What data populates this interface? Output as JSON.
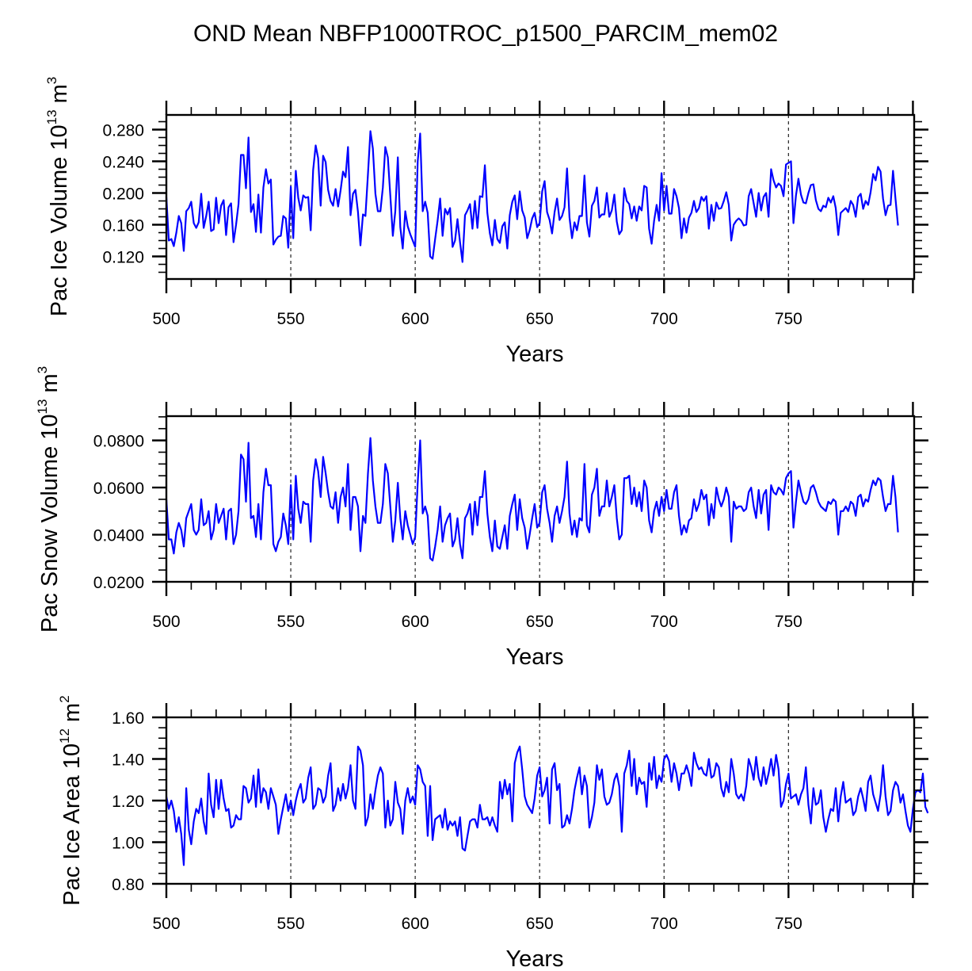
{
  "chart_data": [
    {
      "type": "line",
      "title": "OND Mean NBFP1000TROC_p1500_PARCIM_mem02",
      "xlabel": "Years",
      "ylabel": "Pac Ice Volume 10^13 m^3",
      "ylabel_parts": {
        "base": "Pac Ice Volume 10",
        "exp1": "13",
        "unit": " m",
        "exp2": "3"
      },
      "xlim": [
        500,
        800.5
      ],
      "ylim": [
        0.0915,
        0.2985
      ],
      "xticks": [
        "500",
        "550",
        "600",
        "650",
        "700",
        "750"
      ],
      "xtick_values": [
        500,
        550,
        600,
        650,
        700,
        750
      ],
      "yticks": [
        "0.120",
        "0.160",
        "0.200",
        "0.240",
        "0.280"
      ],
      "ytick_values": [
        0.12,
        0.16,
        0.2,
        0.24,
        0.28
      ],
      "vlines": [
        550,
        600,
        650,
        700,
        750
      ],
      "line_color": "#0000ff",
      "x_start": 500,
      "values": [
        0.195,
        0.14,
        0.142,
        0.133,
        0.15,
        0.171,
        0.162,
        0.127,
        0.177,
        0.181,
        0.189,
        0.162,
        0.156,
        0.163,
        0.199,
        0.156,
        0.171,
        0.189,
        0.152,
        0.154,
        0.194,
        0.162,
        0.184,
        0.191,
        0.147,
        0.182,
        0.187,
        0.138,
        0.16,
        0.186,
        0.248,
        0.248,
        0.206,
        0.27,
        0.176,
        0.186,
        0.151,
        0.198,
        0.15,
        0.207,
        0.23,
        0.212,
        0.217,
        0.135,
        0.141,
        0.145,
        0.146,
        0.171,
        0.168,
        0.131,
        0.208,
        0.143,
        0.228,
        0.194,
        0.178,
        0.197,
        0.194,
        0.195,
        0.153,
        0.229,
        0.26,
        0.244,
        0.184,
        0.247,
        0.239,
        0.204,
        0.19,
        0.184,
        0.205,
        0.183,
        0.203,
        0.227,
        0.22,
        0.258,
        0.172,
        0.199,
        0.204,
        0.176,
        0.134,
        0.173,
        0.171,
        0.224,
        0.278,
        0.256,
        0.199,
        0.177,
        0.177,
        0.207,
        0.258,
        0.245,
        0.197,
        0.146,
        0.177,
        0.245,
        0.157,
        0.13,
        0.177,
        0.158,
        0.148,
        0.14,
        0.132,
        0.24,
        0.275,
        0.177,
        0.189,
        0.175,
        0.12,
        0.117,
        0.142,
        0.165,
        0.193,
        0.146,
        0.18,
        0.173,
        0.181,
        0.132,
        0.14,
        0.167,
        0.138,
        0.113,
        0.172,
        0.178,
        0.186,
        0.155,
        0.19,
        0.156,
        0.196,
        0.195,
        0.235,
        0.175,
        0.149,
        0.134,
        0.166,
        0.142,
        0.137,
        0.158,
        0.163,
        0.13,
        0.172,
        0.189,
        0.197,
        0.167,
        0.202,
        0.178,
        0.169,
        0.143,
        0.153,
        0.168,
        0.175,
        0.157,
        0.162,
        0.202,
        0.215,
        0.176,
        0.166,
        0.149,
        0.176,
        0.193,
        0.166,
        0.171,
        0.182,
        0.231,
        0.169,
        0.143,
        0.163,
        0.153,
        0.171,
        0.171,
        0.222,
        0.163,
        0.145,
        0.184,
        0.19,
        0.207,
        0.169,
        0.173,
        0.173,
        0.2,
        0.17,
        0.178,
        0.198,
        0.164,
        0.148,
        0.153,
        0.206,
        0.19,
        0.186,
        0.168,
        0.183,
        0.165,
        0.183,
        0.178,
        0.209,
        0.207,
        0.155,
        0.136,
        0.165,
        0.185,
        0.165,
        0.225,
        0.178,
        0.209,
        0.174,
        0.174,
        0.205,
        0.196,
        0.181,
        0.143,
        0.168,
        0.15,
        0.169,
        0.175,
        0.19,
        0.176,
        0.181,
        0.195,
        0.19,
        0.196,
        0.155,
        0.185,
        0.165,
        0.188,
        0.18,
        0.181,
        0.19,
        0.201,
        0.185,
        0.14,
        0.16,
        0.165,
        0.168,
        0.165,
        0.159,
        0.16,
        0.196,
        0.205,
        0.187,
        0.17,
        0.2,
        0.178,
        0.195,
        0.2,
        0.17,
        0.23,
        0.216,
        0.207,
        0.212,
        0.209,
        0.196,
        0.236,
        0.238,
        0.24,
        0.162,
        0.197,
        0.218,
        0.198,
        0.188,
        0.187,
        0.2,
        0.21,
        0.211,
        0.191,
        0.18,
        0.177,
        0.184,
        0.182,
        0.194,
        0.188,
        0.196,
        0.181,
        0.147,
        0.175,
        0.178,
        0.181,
        0.176,
        0.19,
        0.185,
        0.17,
        0.195,
        0.199,
        0.18,
        0.19,
        0.185,
        0.201,
        0.224,
        0.216,
        0.233,
        0.227,
        0.193,
        0.172,
        0.184,
        0.185,
        0.228,
        0.193,
        0.159
      ],
      "grid": false,
      "legend": "none"
    },
    {
      "type": "line",
      "xlabel": "Years",
      "ylabel": "Pac Snow Volume 10^13 m^3",
      "ylabel_parts": {
        "base": "Pac Snow Volume 10",
        "exp1": "13",
        "unit": " m",
        "exp2": "3"
      },
      "xlim": [
        500,
        800.5
      ],
      "ylim": [
        0.02,
        0.0903
      ],
      "xticks": [
        "500",
        "550",
        "600",
        "650",
        "700",
        "750"
      ],
      "xtick_values": [
        500,
        550,
        600,
        650,
        700,
        750
      ],
      "yticks": [
        "0.0200",
        "0.0400",
        "0.0600",
        "0.0800"
      ],
      "ytick_values": [
        0.02,
        0.04,
        0.06,
        0.08
      ],
      "vlines": [
        550,
        600,
        650,
        700,
        750
      ],
      "line_color": "#0000ff",
      "x_start": 500,
      "values": [
        0.055,
        0.038,
        0.038,
        0.032,
        0.041,
        0.045,
        0.042,
        0.035,
        0.047,
        0.05,
        0.053,
        0.042,
        0.04,
        0.042,
        0.055,
        0.044,
        0.045,
        0.05,
        0.038,
        0.042,
        0.053,
        0.045,
        0.048,
        0.051,
        0.038,
        0.05,
        0.051,
        0.036,
        0.04,
        0.05,
        0.074,
        0.072,
        0.054,
        0.079,
        0.047,
        0.048,
        0.039,
        0.053,
        0.038,
        0.058,
        0.068,
        0.061,
        0.061,
        0.036,
        0.033,
        0.037,
        0.039,
        0.049,
        0.044,
        0.036,
        0.061,
        0.038,
        0.065,
        0.051,
        0.045,
        0.054,
        0.053,
        0.053,
        0.037,
        0.063,
        0.072,
        0.067,
        0.056,
        0.073,
        0.066,
        0.058,
        0.052,
        0.051,
        0.058,
        0.045,
        0.056,
        0.06,
        0.052,
        0.07,
        0.042,
        0.056,
        0.056,
        0.052,
        0.033,
        0.048,
        0.045,
        0.066,
        0.081,
        0.063,
        0.052,
        0.045,
        0.045,
        0.053,
        0.07,
        0.066,
        0.052,
        0.037,
        0.046,
        0.062,
        0.047,
        0.038,
        0.05,
        0.044,
        0.04,
        0.036,
        0.039,
        0.062,
        0.08,
        0.049,
        0.052,
        0.048,
        0.03,
        0.029,
        0.035,
        0.042,
        0.052,
        0.037,
        0.044,
        0.047,
        0.049,
        0.035,
        0.038,
        0.047,
        0.036,
        0.03,
        0.047,
        0.049,
        0.053,
        0.04,
        0.054,
        0.044,
        0.056,
        0.056,
        0.067,
        0.049,
        0.039,
        0.033,
        0.046,
        0.035,
        0.034,
        0.039,
        0.044,
        0.034,
        0.048,
        0.053,
        0.057,
        0.042,
        0.055,
        0.047,
        0.043,
        0.034,
        0.04,
        0.047,
        0.053,
        0.043,
        0.045,
        0.058,
        0.061,
        0.051,
        0.045,
        0.037,
        0.048,
        0.052,
        0.045,
        0.05,
        0.056,
        0.071,
        0.049,
        0.04,
        0.046,
        0.039,
        0.047,
        0.046,
        0.07,
        0.044,
        0.041,
        0.057,
        0.06,
        0.068,
        0.048,
        0.052,
        0.052,
        0.063,
        0.052,
        0.056,
        0.061,
        0.047,
        0.038,
        0.04,
        0.064,
        0.064,
        0.065,
        0.053,
        0.06,
        0.052,
        0.058,
        0.05,
        0.063,
        0.06,
        0.046,
        0.041,
        0.05,
        0.054,
        0.048,
        0.056,
        0.05,
        0.059,
        0.051,
        0.051,
        0.058,
        0.061,
        0.048,
        0.04,
        0.044,
        0.041,
        0.046,
        0.047,
        0.055,
        0.05,
        0.053,
        0.059,
        0.055,
        0.057,
        0.044,
        0.053,
        0.047,
        0.06,
        0.055,
        0.052,
        0.055,
        0.06,
        0.056,
        0.037,
        0.054,
        0.051,
        0.052,
        0.052,
        0.05,
        0.051,
        0.058,
        0.06,
        0.052,
        0.047,
        0.059,
        0.049,
        0.057,
        0.059,
        0.042,
        0.061,
        0.058,
        0.057,
        0.06,
        0.059,
        0.057,
        0.064,
        0.066,
        0.067,
        0.043,
        0.054,
        0.063,
        0.058,
        0.054,
        0.053,
        0.055,
        0.06,
        0.061,
        0.058,
        0.054,
        0.052,
        0.051,
        0.05,
        0.054,
        0.053,
        0.055,
        0.054,
        0.04,
        0.05,
        0.05,
        0.052,
        0.05,
        0.054,
        0.053,
        0.048,
        0.056,
        0.057,
        0.052,
        0.055,
        0.054,
        0.059,
        0.063,
        0.061,
        0.064,
        0.063,
        0.056,
        0.05,
        0.053,
        0.053,
        0.065,
        0.056,
        0.041
      ],
      "grid": false,
      "legend": "none"
    },
    {
      "type": "line",
      "xlabel": "Years",
      "ylabel": "Pac Ice Area 10^12 m^2",
      "ylabel_parts": {
        "base": "Pac Ice Area 10",
        "exp1": "12",
        "unit": " m",
        "exp2": "2"
      },
      "xlim": [
        500,
        800.5
      ],
      "ylim": [
        0.8,
        1.6
      ],
      "xticks": [
        "500",
        "550",
        "600",
        "650",
        "700",
        "750"
      ],
      "xtick_values": [
        500,
        550,
        600,
        650,
        700,
        750
      ],
      "yticks": [
        "0.80",
        "1.00",
        "1.20",
        "1.40",
        "1.60"
      ],
      "ytick_values": [
        0.8,
        1.0,
        1.2,
        1.4,
        1.6
      ],
      "vlines": [
        550,
        600,
        650,
        700,
        750
      ],
      "line_color": "#0000ff",
      "x_start": 500,
      "values": [
        1.22,
        1.16,
        1.2,
        1.15,
        1.05,
        1.12,
        1.04,
        0.89,
        1.26,
        1.06,
        0.99,
        1.1,
        1.16,
        1.14,
        1.21,
        1.1,
        1.04,
        1.33,
        1.18,
        1.12,
        1.3,
        1.16,
        1.3,
        1.21,
        1.15,
        1.16,
        1.07,
        1.08,
        1.13,
        1.11,
        1.11,
        1.27,
        1.26,
        1.19,
        1.21,
        1.32,
        1.17,
        1.35,
        1.19,
        1.26,
        1.24,
        1.16,
        1.26,
        1.22,
        1.18,
        1.04,
        1.11,
        1.17,
        1.23,
        1.15,
        1.2,
        1.13,
        1.2,
        1.25,
        1.28,
        1.19,
        1.21,
        1.31,
        1.36,
        1.16,
        1.18,
        1.26,
        1.25,
        1.19,
        1.22,
        1.32,
        1.38,
        1.15,
        1.18,
        1.26,
        1.2,
        1.28,
        1.21,
        1.26,
        1.37,
        1.2,
        1.16,
        1.46,
        1.44,
        1.37,
        1.08,
        1.12,
        1.23,
        1.16,
        1.25,
        1.32,
        1.36,
        1.33,
        1.07,
        1.2,
        1.08,
        1.11,
        1.29,
        1.19,
        1.16,
        1.04,
        1.2,
        1.26,
        1.19,
        1.22,
        1.18,
        1.37,
        1.35,
        1.29,
        1.27,
        1.03,
        1.27,
        1.01,
        1.11,
        1.12,
        1.13,
        1.07,
        1.16,
        1.06,
        1.1,
        1.08,
        1.1,
        1.03,
        1.12,
        0.97,
        0.96,
        1.03,
        1.1,
        1.11,
        1.11,
        1.07,
        1.18,
        1.11,
        1.11,
        1.12,
        1.08,
        1.12,
        1.08,
        1.05,
        1.29,
        1.21,
        1.3,
        1.23,
        1.28,
        1.1,
        1.38,
        1.43,
        1.46,
        1.35,
        1.22,
        1.18,
        1.16,
        1.14,
        1.21,
        1.32,
        1.36,
        1.22,
        1.25,
        1.31,
        1.09,
        1.35,
        1.38,
        1.25,
        1.28,
        1.07,
        1.08,
        1.13,
        1.09,
        1.16,
        1.25,
        1.31,
        1.36,
        1.23,
        1.32,
        1.27,
        1.07,
        1.12,
        1.19,
        1.37,
        1.3,
        1.35,
        1.22,
        1.18,
        1.19,
        1.23,
        1.3,
        1.33,
        1.27,
        1.05,
        1.33,
        1.37,
        1.44,
        1.27,
        1.4,
        1.23,
        1.31,
        1.28,
        1.29,
        1.17,
        1.38,
        1.3,
        1.41,
        1.26,
        1.32,
        1.29,
        1.4,
        1.42,
        1.39,
        1.29,
        1.38,
        1.33,
        1.25,
        1.33,
        1.33,
        1.37,
        1.33,
        1.27,
        1.43,
        1.38,
        1.35,
        1.36,
        1.33,
        1.32,
        1.4,
        1.31,
        1.32,
        1.38,
        1.36,
        1.26,
        1.22,
        1.29,
        1.24,
        1.4,
        1.33,
        1.23,
        1.21,
        1.23,
        1.2,
        1.27,
        1.4,
        1.36,
        1.3,
        1.41,
        1.31,
        1.27,
        1.36,
        1.28,
        1.33,
        1.4,
        1.32,
        1.42,
        1.35,
        1.17,
        1.2,
        1.28,
        1.33,
        1.21,
        1.22,
        1.23,
        1.18,
        1.23,
        1.26,
        1.36,
        1.18,
        1.09,
        1.26,
        1.18,
        1.19,
        1.25,
        1.12,
        1.05,
        1.11,
        1.16,
        1.15,
        1.26,
        1.1,
        1.22,
        1.29,
        1.19,
        1.2,
        1.21,
        1.13,
        1.15,
        1.22,
        1.26,
        1.21,
        1.15,
        1.29,
        1.32,
        1.23,
        1.19,
        1.15,
        1.23,
        1.37,
        1.22,
        1.13,
        1.15,
        1.25,
        1.29,
        1.27,
        1.19,
        1.23,
        1.15,
        1.08,
        1.05,
        1.16,
        1.24,
        1.25,
        1.24,
        1.33,
        1.17,
        1.14
      ],
      "grid": false,
      "legend": "none"
    }
  ]
}
